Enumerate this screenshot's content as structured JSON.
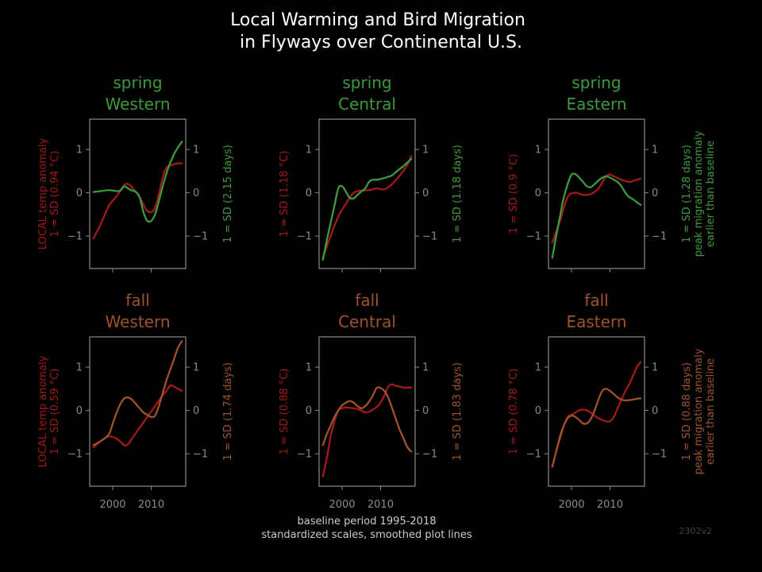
{
  "figure": {
    "title_line1": "Local Warming and Bird Migration",
    "title_line2": "in Flyways over Continental U.S.",
    "footer_line1": "baseline period 1995-2018",
    "footer_line2": "standardized scales, smoothed plot lines",
    "version": "2302v2"
  },
  "colors": {
    "background": "#000000",
    "title": "#ffffff",
    "temperature": "#a31a1a",
    "spring": "#3e9a3e",
    "fall": "#a0522d",
    "axis": "#8a8a8a",
    "footer": "#cccccc",
    "version": "#444444"
  },
  "chart_data": [
    {
      "type": "line",
      "season": "spring",
      "flyway": "Western",
      "left_label": [
        "LOCAL temp anomaly",
        "1 = SD (0.94 °C)"
      ],
      "right_label": [
        "1 = SD (2.15 days)"
      ],
      "xticks": [
        2000,
        2010
      ],
      "yticks": [
        -1,
        0,
        1
      ],
      "xlim": [
        1994,
        2019
      ],
      "ylim": [
        -1.75,
        1.7
      ],
      "series": [
        {
          "role": "temperature",
          "x": [
            1995,
            1997,
            1999,
            2001,
            2003,
            2004,
            2005,
            2007,
            2009,
            2011,
            2013,
            2014,
            2015,
            2016,
            2017,
            2018
          ],
          "y": [
            -1.05,
            -0.7,
            -0.3,
            -0.08,
            0.18,
            0.2,
            0.13,
            -0.1,
            -0.42,
            -0.35,
            0.35,
            0.58,
            0.63,
            0.66,
            0.68,
            0.68
          ]
        },
        {
          "role": "migration",
          "x": [
            1995,
            1997,
            1999,
            2001,
            2002,
            2003,
            2004,
            2005,
            2006,
            2007,
            2008,
            2009,
            2010,
            2011,
            2012,
            2013,
            2014,
            2015,
            2016,
            2017,
            2018
          ],
          "y": [
            0.02,
            0.04,
            0.06,
            0.04,
            0.05,
            0.15,
            0.1,
            0.05,
            0.02,
            -0.1,
            -0.45,
            -0.65,
            -0.65,
            -0.5,
            -0.2,
            0.15,
            0.45,
            0.7,
            0.9,
            1.05,
            1.18
          ]
        }
      ]
    },
    {
      "type": "line",
      "season": "spring",
      "flyway": "Central",
      "left_label": [
        "1 = SD (1.18 °C)"
      ],
      "right_label": [
        "1 = SD (1.18 days)"
      ],
      "xticks": [
        2000,
        2010
      ],
      "yticks": [
        -1,
        0,
        1
      ],
      "xlim": [
        1994,
        2019
      ],
      "ylim": [
        -1.75,
        1.7
      ],
      "series": [
        {
          "role": "temperature",
          "x": [
            1995,
            1997,
            1999,
            2001,
            2003,
            2005,
            2007,
            2009,
            2011,
            2013,
            2015,
            2017,
            2018
          ],
          "y": [
            -1.5,
            -1.0,
            -0.55,
            -0.25,
            0.0,
            0.05,
            0.06,
            0.1,
            0.08,
            0.2,
            0.4,
            0.65,
            0.85
          ]
        },
        {
          "role": "migration",
          "x": [
            1995,
            1996,
            1997,
            1998,
            1999,
            2000,
            2001,
            2002,
            2003,
            2004,
            2005,
            2006,
            2007,
            2008,
            2009,
            2010,
            2011,
            2012,
            2013,
            2014,
            2015,
            2016,
            2017,
            2018
          ],
          "y": [
            -1.55,
            -1.1,
            -0.7,
            -0.3,
            0.1,
            0.15,
            0.02,
            -0.12,
            -0.13,
            -0.05,
            0.03,
            0.1,
            0.25,
            0.3,
            0.3,
            0.32,
            0.34,
            0.37,
            0.4,
            0.48,
            0.55,
            0.62,
            0.7,
            0.78
          ]
        }
      ]
    },
    {
      "type": "line",
      "season": "spring",
      "flyway": "Eastern",
      "left_label": [
        "1 = SD (0.9 °C)"
      ],
      "right_label": [
        "1 = SD (1.28 days)",
        "peak migration anomaly",
        "earlier than baseline"
      ],
      "xticks": [
        2000,
        2010
      ],
      "yticks": [
        -1,
        0,
        1
      ],
      "xlim": [
        1994,
        2019
      ],
      "ylim": [
        -1.75,
        1.7
      ],
      "series": [
        {
          "role": "temperature",
          "x": [
            1995,
            1997,
            1999,
            2001,
            2003,
            2005,
            2007,
            2009,
            2010,
            2011,
            2013,
            2015,
            2016,
            2017,
            2018
          ],
          "y": [
            -1.15,
            -0.65,
            -0.1,
            0.0,
            -0.05,
            -0.03,
            0.1,
            0.38,
            0.42,
            0.38,
            0.3,
            0.25,
            0.27,
            0.3,
            0.33
          ]
        },
        {
          "role": "migration",
          "x": [
            1995,
            1996,
            1997,
            1998,
            1999,
            2000,
            2001,
            2002,
            2003,
            2004,
            2005,
            2006,
            2007,
            2008,
            2009,
            2010,
            2011,
            2012,
            2013,
            2014,
            2015,
            2016,
            2017,
            2018
          ],
          "y": [
            -1.5,
            -1.0,
            -0.55,
            -0.1,
            0.2,
            0.42,
            0.43,
            0.35,
            0.25,
            0.15,
            0.13,
            0.2,
            0.28,
            0.35,
            0.38,
            0.35,
            0.3,
            0.25,
            0.15,
            0.0,
            -0.1,
            -0.15,
            -0.22,
            -0.28
          ]
        }
      ]
    },
    {
      "type": "line",
      "season": "fall",
      "flyway": "Western",
      "left_label": [
        "LOCAL temp anomaly",
        "1 = SD (0.59 °C)"
      ],
      "right_label": [
        "1 = SD (1.74 days)"
      ],
      "xticks": [
        2000,
        2010
      ],
      "yticks": [
        -1,
        0,
        1
      ],
      "xlim": [
        1994,
        2019
      ],
      "ylim": [
        -1.75,
        1.7
      ],
      "series": [
        {
          "role": "temperature",
          "x": [
            1995,
            1997,
            1999,
            2001,
            2003,
            2004,
            2005,
            2007,
            2009,
            2011,
            2013,
            2014,
            2015,
            2016,
            2017,
            2018
          ],
          "y": [
            -0.85,
            -0.7,
            -0.6,
            -0.65,
            -0.8,
            -0.78,
            -0.65,
            -0.4,
            -0.15,
            0.1,
            0.35,
            0.45,
            0.58,
            0.55,
            0.5,
            0.45
          ]
        },
        {
          "role": "migration",
          "x": [
            1995,
            1997,
            1999,
            2000,
            2001,
            2002,
            2003,
            2004,
            2005,
            2006,
            2007,
            2008,
            2009,
            2010,
            2011,
            2012,
            2013,
            2014,
            2015,
            2016,
            2017,
            2018
          ],
          "y": [
            -0.8,
            -0.7,
            -0.55,
            -0.3,
            -0.05,
            0.15,
            0.28,
            0.3,
            0.25,
            0.15,
            0.05,
            -0.05,
            -0.1,
            -0.15,
            -0.12,
            0.1,
            0.4,
            0.7,
            0.95,
            1.2,
            1.45,
            1.6
          ]
        }
      ]
    },
    {
      "type": "line",
      "season": "fall",
      "flyway": "Central",
      "left_label": [
        "1 = SD (0.88 °C)"
      ],
      "right_label": [
        "1 = SD (1.83 days)"
      ],
      "xticks": [
        2000,
        2010
      ],
      "yticks": [
        -1,
        0,
        1
      ],
      "xlim": [
        1994,
        2019
      ],
      "ylim": [
        -1.75,
        1.7
      ],
      "series": [
        {
          "role": "temperature",
          "x": [
            1995,
            1996,
            1997,
            1998,
            1999,
            2000,
            2001,
            2002,
            2003,
            2004,
            2005,
            2006,
            2007,
            2008,
            2009,
            2010,
            2011,
            2012,
            2013,
            2014,
            2015,
            2016,
            2017,
            2018
          ],
          "y": [
            -1.52,
            -1.1,
            -0.6,
            -0.25,
            0.0,
            0.05,
            0.07,
            0.06,
            0.05,
            0.03,
            0.0,
            -0.05,
            -0.03,
            0.02,
            0.08,
            0.18,
            0.35,
            0.55,
            0.6,
            0.57,
            0.55,
            0.53,
            0.53,
            0.53
          ]
        },
        {
          "role": "migration",
          "x": [
            1995,
            1996,
            1997,
            1998,
            1999,
            2000,
            2001,
            2002,
            2003,
            2004,
            2005,
            2006,
            2007,
            2008,
            2009,
            2010,
            2011,
            2012,
            2013,
            2014,
            2015,
            2016,
            2017,
            2018
          ],
          "y": [
            -0.8,
            -0.55,
            -0.35,
            -0.15,
            0.0,
            0.12,
            0.18,
            0.22,
            0.18,
            0.1,
            0.05,
            0.1,
            0.2,
            0.35,
            0.52,
            0.52,
            0.45,
            0.3,
            0.05,
            -0.2,
            -0.45,
            -0.65,
            -0.85,
            -0.95
          ]
        }
      ]
    },
    {
      "type": "line",
      "season": "fall",
      "flyway": "Eastern",
      "left_label": [
        "1 = SD (0.78 °C)"
      ],
      "right_label": [
        "1 = SD (0.88 days)",
        "peak migration anomaly",
        "earlier than baseline"
      ],
      "xticks": [
        2000,
        2010
      ],
      "yticks": [
        -1,
        0,
        1
      ],
      "xlim": [
        1994,
        2019
      ],
      "ylim": [
        -1.75,
        1.7
      ],
      "series": [
        {
          "role": "temperature",
          "x": [
            1995,
            1996,
            1997,
            1998,
            1999,
            2000,
            2001,
            2002,
            2003,
            2004,
            2005,
            2006,
            2007,
            2008,
            2009,
            2010,
            2011,
            2012,
            2013,
            2014,
            2015,
            2016,
            2017,
            2018
          ],
          "y": [
            -1.3,
            -0.95,
            -0.65,
            -0.35,
            -0.15,
            -0.1,
            -0.05,
            0.0,
            0.02,
            0.0,
            -0.05,
            -0.12,
            -0.18,
            -0.22,
            -0.25,
            -0.25,
            -0.15,
            0.05,
            0.25,
            0.45,
            0.6,
            0.8,
            1.0,
            1.12
          ]
        },
        {
          "role": "migration",
          "x": [
            1995,
            1996,
            1997,
            1998,
            1999,
            2000,
            2001,
            2002,
            2003,
            2004,
            2005,
            2006,
            2007,
            2008,
            2009,
            2010,
            2011,
            2012,
            2013,
            2014,
            2015,
            2016,
            2017,
            2018
          ],
          "y": [
            -1.3,
            -0.95,
            -0.6,
            -0.35,
            -0.18,
            -0.12,
            -0.15,
            -0.22,
            -0.3,
            -0.3,
            -0.2,
            0.0,
            0.25,
            0.45,
            0.5,
            0.45,
            0.38,
            0.3,
            0.25,
            0.23,
            0.24,
            0.25,
            0.27,
            0.28
          ]
        }
      ]
    }
  ]
}
